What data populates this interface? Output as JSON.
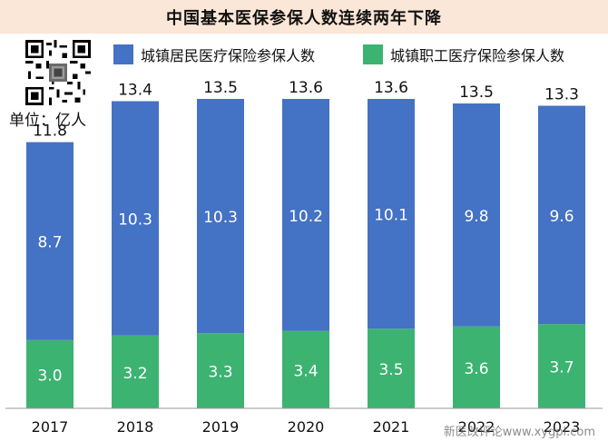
{
  "header": {
    "title": "中国基本医保参保人数连续两年下降"
  },
  "unit_label": "单位：亿人",
  "watermark": "新医改评论www.xygpl.com",
  "colors": {
    "urban_rural": "#4472c4",
    "employee": "#3cb371",
    "title_bg": "#fbe7d7"
  },
  "chart_data": {
    "type": "bar",
    "stacked": true,
    "title": "中国基本医保参保人数连续两年下降",
    "categories": [
      "2017",
      "2018",
      "2019",
      "2020",
      "2021",
      "2022",
      "2023"
    ],
    "series": [
      {
        "name": "城镇居民医疗保险参保人数",
        "values": [
          8.7,
          10.3,
          10.3,
          10.2,
          10.1,
          9.8,
          9.6
        ]
      },
      {
        "name": "城镇职工医疗保险参保人数",
        "values": [
          3.0,
          3.2,
          3.3,
          3.4,
          3.5,
          3.6,
          3.7
        ]
      }
    ],
    "totals": [
      "11.8",
      "13.4",
      "13.5",
      "13.6",
      "13.6",
      "13.5",
      "13.3"
    ],
    "value_labels": {
      "urban_rural": [
        "8.7",
        "10.3",
        "10.3",
        "10.2",
        "10.1",
        "9.8",
        "9.6"
      ],
      "employee": [
        "3.0",
        "3.2",
        "3.3",
        "3.4",
        "3.5",
        "3.6",
        "3.7"
      ]
    },
    "ylim": [
      0,
      13.8
    ],
    "legend_position": "top",
    "grid": false
  }
}
